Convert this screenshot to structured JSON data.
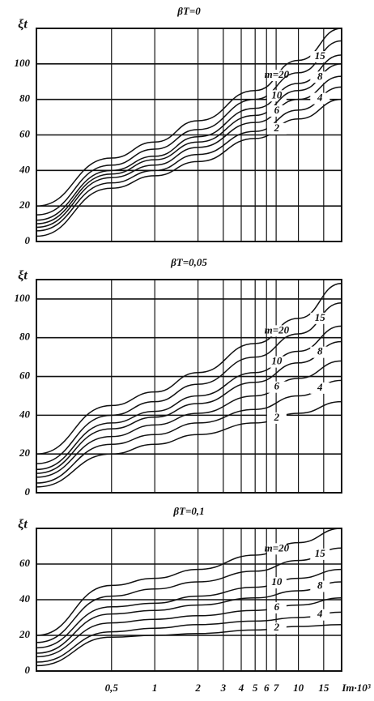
{
  "charts": [
    {
      "type": "line",
      "title": "βT=0",
      "y_label": "ξt",
      "xscale": "log",
      "grid": true,
      "xlim": [
        0.15,
        20
      ],
      "ylim": [
        0,
        120
      ],
      "yticks": [
        0,
        20,
        40,
        60,
        80,
        100
      ],
      "xticks": [
        0.5,
        1,
        2,
        3,
        4,
        5,
        6,
        7,
        10,
        15
      ],
      "x": [
        0.15,
        0.5,
        1,
        2,
        5,
        10,
        20
      ],
      "series": [
        {
          "name": "m=20",
          "color": "#111111",
          "values": [
            20,
            47,
            56,
            68,
            85,
            102,
            120
          ]
        },
        {
          "name": "15",
          "color": "#111111",
          "values": [
            15,
            43,
            52,
            63,
            80,
            95,
            113
          ]
        },
        {
          "name": "10",
          "color": "#111111",
          "values": [
            12,
            40,
            48,
            59,
            75,
            89,
            105
          ]
        },
        {
          "name": "8",
          "color": "#111111",
          "values": [
            10,
            38,
            46,
            56,
            71,
            85,
            100
          ]
        },
        {
          "name": "6",
          "color": "#111111",
          "values": [
            8,
            36,
            43,
            53,
            67,
            80,
            93
          ]
        },
        {
          "name": "4",
          "color": "#111111",
          "values": [
            6,
            33,
            40,
            49,
            62,
            74,
            87
          ]
        },
        {
          "name": "2",
          "color": "#111111",
          "values": [
            3,
            30,
            37,
            45,
            58,
            69,
            80
          ]
        }
      ]
    },
    {
      "type": "line",
      "title": "βT=0,05",
      "y_label": "ξt",
      "xscale": "log",
      "grid": true,
      "xlim": [
        0.15,
        20
      ],
      "ylim": [
        0,
        110
      ],
      "yticks": [
        0,
        20,
        40,
        60,
        80,
        100
      ],
      "xticks": [
        0.5,
        1,
        2,
        3,
        4,
        5,
        6,
        7,
        10,
        15
      ],
      "x": [
        0.15,
        0.5,
        1,
        2,
        5,
        10,
        20
      ],
      "series": [
        {
          "name": "m=20",
          "color": "#111111",
          "values": [
            20,
            45,
            52,
            62,
            77,
            90,
            108
          ]
        },
        {
          "name": "15",
          "color": "#111111",
          "values": [
            15,
            40,
            47,
            56,
            70,
            82,
            98
          ]
        },
        {
          "name": "10",
          "color": "#111111",
          "values": [
            12,
            36,
            42,
            50,
            62,
            73,
            86
          ]
        },
        {
          "name": "8",
          "color": "#111111",
          "values": [
            10,
            33,
            39,
            46,
            57,
            67,
            78
          ]
        },
        {
          "name": "6",
          "color": "#111111",
          "values": [
            8,
            29,
            35,
            41,
            50,
            59,
            68
          ]
        },
        {
          "name": "4",
          "color": "#111111",
          "values": [
            5,
            25,
            30,
            36,
            43,
            50,
            58
          ]
        },
        {
          "name": "2",
          "color": "#111111",
          "values": [
            3,
            20,
            25,
            30,
            36,
            41,
            47
          ]
        }
      ]
    },
    {
      "type": "line",
      "title": "βT=0,1",
      "y_label": "ξt",
      "x_label": "Iт·10³",
      "xscale": "log",
      "grid": true,
      "xlim": [
        0.15,
        20
      ],
      "ylim": [
        0,
        80
      ],
      "yticks": [
        0,
        20,
        40,
        60
      ],
      "xticks": [
        {
          "value": 0.5,
          "label": "0,5"
        },
        1,
        2,
        3,
        4,
        5,
        6,
        7,
        10,
        15
      ],
      "x": [
        0.15,
        0.5,
        1,
        2,
        5,
        10,
        20
      ],
      "series": [
        {
          "name": "m=20",
          "color": "#111111",
          "values": [
            20,
            48,
            52,
            57,
            65,
            72,
            80
          ]
        },
        {
          "name": "15",
          "color": "#111111",
          "values": [
            16,
            42,
            46,
            50,
            56,
            62,
            69
          ]
        },
        {
          "name": "10",
          "color": "#111111",
          "values": [
            13,
            36,
            38,
            42,
            47,
            52,
            57
          ]
        },
        {
          "name": "8",
          "color": "#111111",
          "values": [
            10,
            32,
            34,
            37,
            41,
            45,
            50
          ]
        },
        {
          "name": "6",
          "color": "#111111",
          "values": [
            8,
            27,
            29,
            31,
            34,
            37,
            41
          ]
        },
        {
          "name": "4",
          "color": "#111111",
          "values": [
            5,
            22,
            24,
            26,
            28,
            30,
            33
          ]
        },
        {
          "name": "2",
          "color": "#111111",
          "values": [
            3,
            19,
            20,
            21,
            23,
            25,
            26
          ]
        }
      ]
    }
  ]
}
